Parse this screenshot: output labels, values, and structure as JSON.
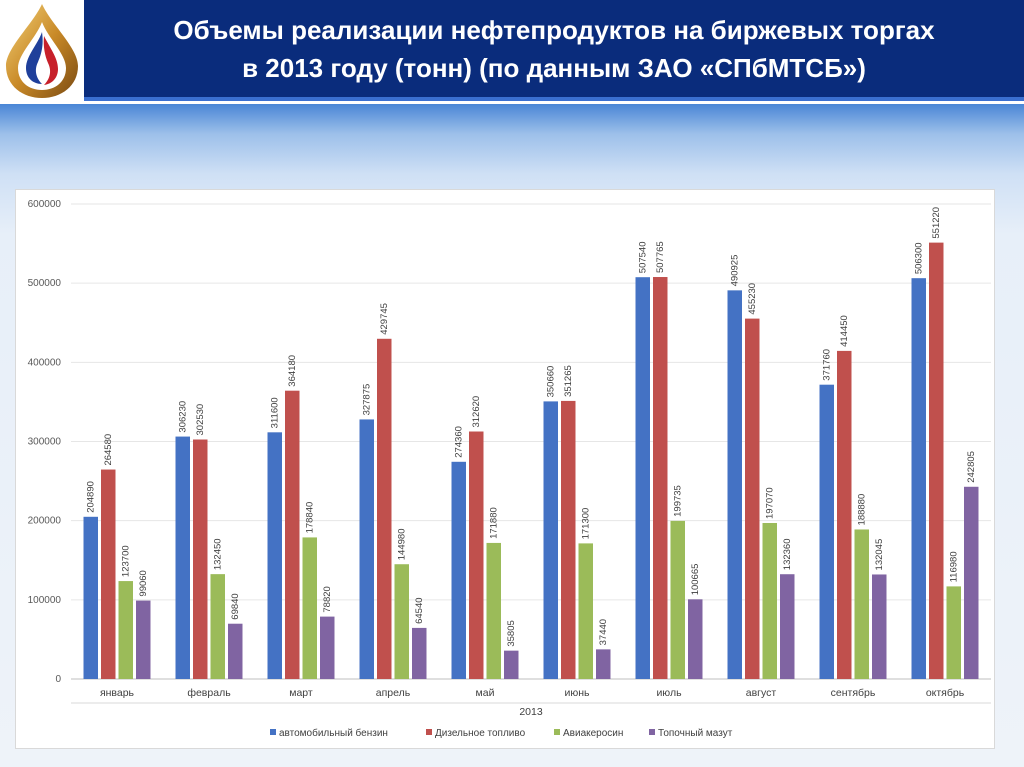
{
  "header": {
    "title_line1": "Объемы реализации нефтепродуктов на биржевых торгах",
    "title_line2": "в 2013 году (тонн) (по данным ЗАО «СПбМТСБ»)"
  },
  "chart_data": {
    "type": "bar",
    "title": "",
    "xlabel": "2013",
    "ylabel": "",
    "ylim": [
      0,
      600000
    ],
    "yticks": [
      0,
      100000,
      200000,
      300000,
      400000,
      500000,
      600000
    ],
    "grid": true,
    "legend_position": "bottom",
    "categories": [
      "январь",
      "февраль",
      "март",
      "апрель",
      "май",
      "июнь",
      "июль",
      "август",
      "сентябрь",
      "октябрь"
    ],
    "series": [
      {
        "name": "автомобильный бензин",
        "color": "#4472c4",
        "values": [
          204890,
          306230,
          311600,
          327875,
          274360,
          350660,
          507540,
          490925,
          371760,
          506300
        ]
      },
      {
        "name": "Дизельное топливо",
        "color": "#c0504d",
        "values": [
          264580,
          302530,
          364180,
          429745,
          312620,
          351265,
          507765,
          455230,
          414450,
          551220
        ]
      },
      {
        "name": "Авиакеросин",
        "color": "#9bbb59",
        "values": [
          123700,
          132450,
          178840,
          144980,
          171880,
          171300,
          199735,
          197070,
          188880,
          116980
        ]
      },
      {
        "name": "Топочный мазут",
        "color": "#8064a2",
        "values": [
          99060,
          69840,
          78820,
          64540,
          35805,
          37440,
          100665,
          132360,
          132045,
          242805
        ]
      }
    ]
  }
}
